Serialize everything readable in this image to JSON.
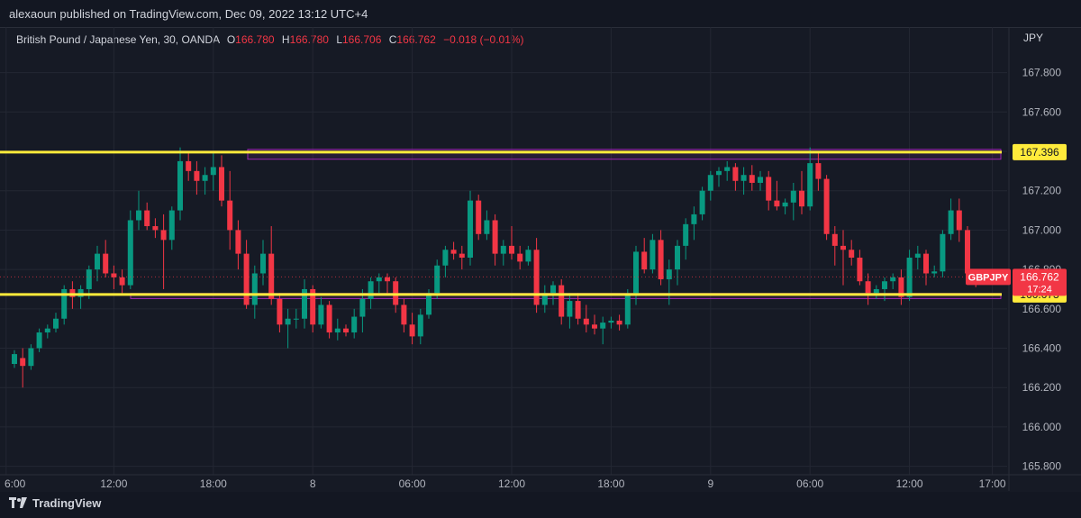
{
  "header": {
    "published": "alexaoun published on TradingView.com, Dec 09, 2022 13:12 UTC+4"
  },
  "legend": {
    "symbol": "British Pound / Japanese Yen, 30, OANDA",
    "open_label": "O",
    "open": "166.780",
    "high_label": "H",
    "high": "166.780",
    "low_label": "L",
    "low": "166.706",
    "close_label": "C",
    "close": "166.762",
    "change": "−0.018 (−0.01%)"
  },
  "footer": {
    "brand": "TradingView"
  },
  "colors": {
    "up": "#089981",
    "down": "#f23645",
    "level": "#ffeb3b",
    "zone": "#9c27b0",
    "background": "#161a25"
  },
  "chart_data": {
    "type": "candlestick",
    "currency": "JPY",
    "ylim": [
      165.78,
      167.94
    ],
    "y_ticks": [
      "167.800",
      "167.600",
      "167.400",
      "167.200",
      "167.000",
      "166.800",
      "166.600",
      "166.400",
      "166.200",
      "166.000",
      "165.800"
    ],
    "x_ticks": [
      {
        "label": "6:00",
        "i": -1
      },
      {
        "label": "12:00",
        "i": 12
      },
      {
        "label": "18:00",
        "i": 24
      },
      {
        "label": "8",
        "i": 36
      },
      {
        "label": "06:00",
        "i": 48
      },
      {
        "label": "12:00",
        "i": 60
      },
      {
        "label": "18:00",
        "i": 72
      },
      {
        "label": "9",
        "i": 84
      },
      {
        "label": "06:00",
        "i": 96
      },
      {
        "label": "12:00",
        "i": 108
      },
      {
        "label": "17:00",
        "i": 118
      }
    ],
    "candles": [
      [
        166.32,
        166.39,
        166.3,
        166.37
      ],
      [
        166.35,
        166.4,
        166.2,
        166.31
      ],
      [
        166.31,
        166.42,
        166.29,
        166.4
      ],
      [
        166.4,
        166.5,
        166.38,
        166.48
      ],
      [
        166.48,
        166.52,
        166.45,
        166.5
      ],
      [
        166.5,
        166.58,
        166.48,
        166.55
      ],
      [
        166.55,
        166.72,
        166.52,
        166.7
      ],
      [
        166.7,
        166.74,
        166.6,
        166.66
      ],
      [
        166.66,
        166.72,
        166.6,
        166.7
      ],
      [
        166.7,
        166.82,
        166.65,
        166.8
      ],
      [
        166.8,
        166.92,
        166.74,
        166.88
      ],
      [
        166.88,
        166.95,
        166.76,
        166.78
      ],
      [
        166.78,
        166.82,
        166.7,
        166.76
      ],
      [
        166.76,
        166.8,
        166.68,
        166.72
      ],
      [
        166.72,
        167.1,
        166.7,
        167.05
      ],
      [
        167.05,
        167.2,
        167.0,
        167.1
      ],
      [
        167.1,
        167.14,
        167.0,
        167.02
      ],
      [
        167.02,
        167.06,
        166.96,
        167.0
      ],
      [
        167.0,
        167.08,
        166.7,
        166.95
      ],
      [
        166.95,
        167.12,
        166.9,
        167.1
      ],
      [
        167.1,
        167.42,
        167.05,
        167.35
      ],
      [
        167.35,
        167.4,
        167.25,
        167.3
      ],
      [
        167.3,
        167.35,
        167.18,
        167.25
      ],
      [
        167.25,
        167.32,
        167.18,
        167.28
      ],
      [
        167.28,
        167.4,
        167.2,
        167.32
      ],
      [
        167.32,
        167.38,
        167.12,
        167.15
      ],
      [
        167.15,
        167.3,
        166.9,
        167.0
      ],
      [
        167.0,
        167.05,
        166.8,
        166.88
      ],
      [
        166.88,
        166.95,
        166.6,
        166.62
      ],
      [
        166.62,
        166.82,
        166.55,
        166.78
      ],
      [
        166.78,
        166.95,
        166.72,
        166.88
      ],
      [
        166.88,
        167.02,
        166.62,
        166.65
      ],
      [
        166.65,
        166.68,
        166.48,
        166.52
      ],
      [
        166.52,
        166.6,
        166.4,
        166.55
      ],
      [
        166.55,
        166.6,
        166.5,
        166.55
      ],
      [
        166.55,
        166.75,
        166.5,
        166.7
      ],
      [
        166.7,
        166.72,
        166.48,
        166.52
      ],
      [
        166.52,
        166.66,
        166.5,
        166.62
      ],
      [
        166.62,
        166.64,
        166.45,
        166.48
      ],
      [
        166.48,
        166.55,
        166.44,
        166.5
      ],
      [
        166.5,
        166.52,
        166.46,
        166.48
      ],
      [
        166.48,
        166.6,
        166.45,
        166.56
      ],
      [
        166.56,
        166.7,
        166.48,
        166.65
      ],
      [
        166.65,
        166.76,
        166.6,
        166.74
      ],
      [
        166.74,
        166.78,
        166.68,
        166.76
      ],
      [
        166.76,
        166.78,
        166.68,
        166.74
      ],
      [
        166.74,
        166.76,
        166.58,
        166.62
      ],
      [
        166.62,
        166.65,
        166.48,
        166.52
      ],
      [
        166.52,
        166.58,
        166.42,
        166.46
      ],
      [
        166.46,
        166.6,
        166.42,
        166.57
      ],
      [
        166.57,
        166.7,
        166.55,
        166.68
      ],
      [
        166.68,
        166.85,
        166.65,
        166.82
      ],
      [
        166.82,
        166.92,
        166.76,
        166.9
      ],
      [
        166.9,
        166.94,
        166.85,
        166.88
      ],
      [
        166.88,
        166.92,
        166.8,
        166.86
      ],
      [
        166.86,
        167.2,
        166.82,
        167.15
      ],
      [
        167.15,
        167.18,
        166.95,
        166.98
      ],
      [
        166.98,
        167.1,
        166.95,
        167.05
      ],
      [
        167.05,
        167.08,
        166.82,
        166.88
      ],
      [
        166.88,
        166.95,
        166.82,
        166.92
      ],
      [
        166.92,
        167.02,
        166.85,
        166.88
      ],
      [
        166.88,
        166.92,
        166.8,
        166.84
      ],
      [
        166.84,
        166.92,
        166.82,
        166.9
      ],
      [
        166.9,
        166.96,
        166.58,
        166.62
      ],
      [
        166.62,
        166.72,
        166.58,
        166.68
      ],
      [
        166.68,
        166.74,
        166.62,
        166.72
      ],
      [
        166.72,
        166.75,
        166.52,
        166.56
      ],
      [
        166.56,
        166.68,
        166.5,
        166.64
      ],
      [
        166.64,
        166.68,
        166.52,
        166.55
      ],
      [
        166.55,
        166.62,
        166.48,
        166.52
      ],
      [
        166.52,
        166.57,
        166.47,
        166.5
      ],
      [
        166.5,
        166.56,
        166.42,
        166.53
      ],
      [
        166.53,
        166.56,
        166.5,
        166.54
      ],
      [
        166.54,
        166.57,
        166.49,
        166.52
      ],
      [
        166.52,
        166.7,
        166.5,
        166.67
      ],
      [
        166.67,
        166.92,
        166.62,
        166.89
      ],
      [
        166.89,
        166.96,
        166.78,
        166.8
      ],
      [
        166.8,
        166.98,
        166.78,
        166.95
      ],
      [
        166.95,
        167.0,
        166.72,
        166.75
      ],
      [
        166.75,
        166.85,
        166.62,
        166.8
      ],
      [
        166.8,
        166.95,
        166.72,
        166.92
      ],
      [
        166.92,
        167.06,
        166.85,
        167.03
      ],
      [
        167.03,
        167.12,
        166.95,
        167.08
      ],
      [
        167.08,
        167.22,
        167.05,
        167.2
      ],
      [
        167.2,
        167.3,
        167.15,
        167.28
      ],
      [
        167.28,
        167.32,
        167.22,
        167.3
      ],
      [
        167.3,
        167.35,
        167.25,
        167.32
      ],
      [
        167.32,
        167.34,
        167.2,
        167.25
      ],
      [
        167.25,
        167.32,
        167.18,
        167.28
      ],
      [
        167.28,
        167.33,
        167.2,
        167.24
      ],
      [
        167.24,
        167.3,
        167.2,
        167.27
      ],
      [
        167.27,
        167.3,
        167.1,
        167.15
      ],
      [
        167.15,
        167.25,
        167.1,
        167.12
      ],
      [
        167.12,
        167.16,
        167.08,
        167.14
      ],
      [
        167.14,
        167.24,
        167.05,
        167.2
      ],
      [
        167.2,
        167.3,
        167.08,
        167.12
      ],
      [
        167.12,
        167.42,
        167.1,
        167.34
      ],
      [
        167.34,
        167.4,
        167.2,
        167.26
      ],
      [
        167.26,
        167.28,
        166.95,
        166.98
      ],
      [
        166.98,
        167.02,
        166.82,
        166.92
      ],
      [
        166.92,
        167.0,
        166.72,
        166.9
      ],
      [
        166.9,
        166.95,
        166.82,
        166.86
      ],
      [
        166.86,
        166.9,
        166.72,
        166.74
      ],
      [
        166.74,
        166.78,
        166.62,
        166.68
      ],
      [
        166.68,
        166.72,
        166.65,
        166.7
      ],
      [
        166.7,
        166.76,
        166.64,
        166.74
      ],
      [
        166.74,
        166.78,
        166.7,
        166.76
      ],
      [
        166.76,
        166.8,
        166.62,
        166.66
      ],
      [
        166.66,
        166.9,
        166.64,
        166.86
      ],
      [
        166.86,
        166.92,
        166.8,
        166.88
      ],
      [
        166.88,
        166.9,
        166.72,
        166.78
      ],
      [
        166.78,
        166.82,
        166.76,
        166.79
      ],
      [
        166.79,
        167.0,
        166.76,
        166.98
      ],
      [
        166.98,
        167.16,
        166.95,
        167.1
      ],
      [
        167.1,
        167.16,
        166.94,
        167.0
      ],
      [
        167.0,
        167.02,
        166.75,
        166.78
      ],
      [
        166.78,
        166.78,
        166.71,
        166.76
      ]
    ],
    "levels": [
      {
        "price": 167.396,
        "label": "167.396"
      },
      {
        "price": 166.673,
        "label": "166.673"
      }
    ],
    "zones": [
      {
        "top": 167.41,
        "bottom": 167.36
      },
      {
        "top": 166.678,
        "bottom": 166.652
      }
    ],
    "price_tag": {
      "symbol": "GBPJPY",
      "price": "166.762",
      "countdown": "17:24"
    }
  }
}
